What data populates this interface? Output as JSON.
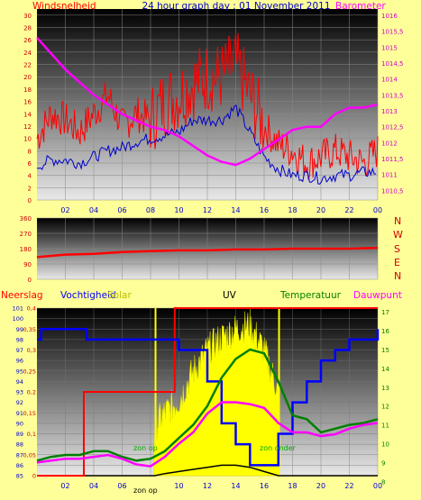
{
  "chart_data": [
    {
      "type": "line",
      "title": "24 hour graph day : 01 November 2011",
      "left_axis_label": "Windsnelheid",
      "right_axis_label": "Barometer",
      "x_ticks": [
        "02",
        "04",
        "06",
        "08",
        "10",
        "12",
        "14",
        "16",
        "18",
        "20",
        "22",
        "00"
      ],
      "left_ticks": [
        "0",
        "2",
        "4",
        "6",
        "8",
        "10",
        "12",
        "14",
        "16",
        "18",
        "20",
        "22",
        "24",
        "26",
        "28",
        "30"
      ],
      "left_ylim": [
        0,
        31
      ],
      "right_ticks": [
        "1010,5",
        "1011",
        "1011,5",
        "1012",
        "1012,5",
        "1013",
        "1013,5",
        "1014",
        "1014,5",
        "1015",
        "1015,5",
        "1016"
      ],
      "right_ylim": [
        1010.2,
        1016.2
      ],
      "x": [
        0,
        1,
        2,
        3,
        4,
        5,
        6,
        7,
        8,
        9,
        10,
        11,
        12,
        13,
        14,
        15,
        16,
        17,
        18,
        19,
        20,
        21,
        22,
        23,
        24
      ],
      "series": [
        {
          "key": "gust",
          "color": "#ff0000",
          "values": [
            10,
            14,
            13,
            11,
            14,
            17,
            12,
            14,
            13,
            16,
            17,
            19,
            20,
            20,
            22,
            17,
            12,
            9,
            8,
            6,
            7,
            8,
            7,
            6,
            8
          ]
        },
        {
          "key": "average",
          "color": "#0000cc",
          "values": [
            5.5,
            6.5,
            6.5,
            6,
            7,
            8,
            8.5,
            9.5,
            10,
            10.5,
            11,
            13,
            13,
            13,
            15,
            11,
            7,
            5,
            4,
            4,
            3.5,
            4,
            4,
            4.5,
            4.5
          ]
        },
        {
          "key": "barometer",
          "color": "#ff00ff",
          "values": [
            1015.3,
            1014.8,
            1014.3,
            1013.9,
            1013.5,
            1013.2,
            1012.9,
            1012.7,
            1012.5,
            1012.4,
            1012.2,
            1011.9,
            1011.6,
            1011.4,
            1011.3,
            1011.5,
            1011.8,
            1012.1,
            1012.4,
            1012.5,
            1012.5,
            1012.9,
            1013.1,
            1013.1,
            1013.2
          ]
        }
      ]
    },
    {
      "type": "line",
      "left_ticks": [
        "0",
        "90",
        "180",
        "270",
        "360"
      ],
      "ylim": [
        0,
        360
      ],
      "compass_labels": [
        "N",
        "W",
        "S",
        "E",
        "N"
      ],
      "x": [
        0,
        2,
        4,
        6,
        8,
        10,
        12,
        14,
        16,
        18,
        20,
        22,
        24
      ],
      "series": [
        {
          "key": "direction",
          "color": "#ff0000",
          "values": [
            130,
            145,
            150,
            160,
            165,
            170,
            170,
            175,
            175,
            180,
            180,
            180,
            185
          ]
        }
      ]
    },
    {
      "type": "line",
      "legend": [
        {
          "label": "Neerslag",
          "color": "#ff0000"
        },
        {
          "label": "Vochtigheid",
          "color": "#0000ff"
        },
        {
          "label": "Solar",
          "color": "#bbbb00"
        },
        {
          "label": "UV",
          "color": "#000000"
        },
        {
          "label": "Temperatuur",
          "color": "#008000"
        },
        {
          "label": "Dauwpunt",
          "color": "#ff00ff"
        }
      ],
      "rain_ticks": [
        "0",
        "0,05",
        "0,1",
        "0,15",
        "0,2",
        "0,25",
        "0,3",
        "0,35",
        "0,4"
      ],
      "rain_ylim": [
        0,
        0.4
      ],
      "humidity_ticks": [
        "85",
        "86",
        "87",
        "88",
        "89",
        "90",
        "91",
        "92",
        "93",
        "94",
        "95",
        "96",
        "97",
        "98",
        "99",
        "100",
        "101"
      ],
      "humidity_ylim": [
        85,
        101
      ],
      "temp_ticks": [
        "8",
        "9",
        "10",
        "11",
        "12",
        "13",
        "14",
        "15",
        "16",
        "17"
      ],
      "temp_ylim": [
        8.3,
        17.2
      ],
      "x_ticks": [
        "02",
        "04",
        "06",
        "08",
        "10",
        "12",
        "14",
        "16",
        "18",
        "20",
        "22",
        "00"
      ],
      "annotations": [
        {
          "text": "zon op",
          "x": 8.4,
          "color": "#00aa00"
        },
        {
          "text": "zon onder",
          "x": 17.0,
          "color": "#00aa00"
        },
        {
          "text": "zon op",
          "x": 8.4,
          "color": "#000000"
        }
      ],
      "series": [
        {
          "key": "rain",
          "color": "#ff0000",
          "x": [
            0,
            3.3,
            3.3,
            9.7,
            9.7,
            24
          ],
          "values": [
            0,
            0,
            0.2,
            0.2,
            0.4,
            0.4
          ]
        },
        {
          "key": "humidity",
          "color": "#0000ff",
          "x": [
            0,
            0.3,
            3.5,
            3.5,
            10,
            10,
            12,
            13,
            14,
            15,
            16,
            17,
            18,
            19,
            20,
            21,
            22,
            23,
            24
          ],
          "values": [
            98,
            99,
            99,
            98,
            98,
            97,
            94,
            90,
            88,
            86,
            86,
            89,
            92,
            94,
            96,
            97,
            98,
            98,
            99
          ]
        },
        {
          "key": "solar",
          "color": "#ffff00",
          "x": [
            0,
            8.2,
            8.3,
            9,
            10,
            11,
            12,
            13,
            14,
            15,
            16,
            17,
            17.1,
            24
          ],
          "values": [
            0,
            0,
            0.12,
            0.15,
            0.18,
            0.25,
            0.3,
            0.33,
            0.35,
            0.36,
            0.3,
            0.2,
            0,
            0
          ]
        },
        {
          "key": "uv",
          "color": "#000000",
          "x": [
            0,
            8.3,
            9,
            10,
            11,
            12,
            13,
            14,
            15,
            16,
            17,
            24
          ],
          "values": [
            0,
            0,
            0.005,
            0.01,
            0.015,
            0.02,
            0.025,
            0.025,
            0.02,
            0.01,
            0,
            0
          ]
        },
        {
          "key": "temperature",
          "color": "#008000",
          "x": [
            0,
            1,
            2,
            3,
            4,
            5,
            6,
            7,
            8,
            9,
            10,
            11,
            12,
            13,
            14,
            15,
            16,
            17,
            18,
            19,
            20,
            21,
            22,
            23,
            24
          ],
          "values": [
            9.1,
            9.3,
            9.4,
            9.4,
            9.6,
            9.6,
            9.3,
            9.1,
            9.2,
            9.6,
            10.3,
            11.0,
            12.0,
            13.5,
            14.5,
            15.0,
            14.8,
            13.3,
            11.5,
            11.3,
            10.6,
            10.8,
            11.0,
            11.1,
            11.3
          ]
        },
        {
          "key": "dewpoint",
          "color": "#ff00ff",
          "x": [
            0,
            1,
            2,
            3,
            4,
            5,
            6,
            7,
            8,
            9,
            10,
            11,
            12,
            13,
            14,
            15,
            16,
            17,
            18,
            19,
            20,
            21,
            22,
            23,
            24
          ],
          "values": [
            9.0,
            9.1,
            9.2,
            9.2,
            9.3,
            9.4,
            9.2,
            8.9,
            8.8,
            9.3,
            10.0,
            10.6,
            11.6,
            12.2,
            12.2,
            12.1,
            11.9,
            11.1,
            10.6,
            10.6,
            10.4,
            10.5,
            10.8,
            11.0,
            11.1
          ]
        }
      ]
    }
  ]
}
